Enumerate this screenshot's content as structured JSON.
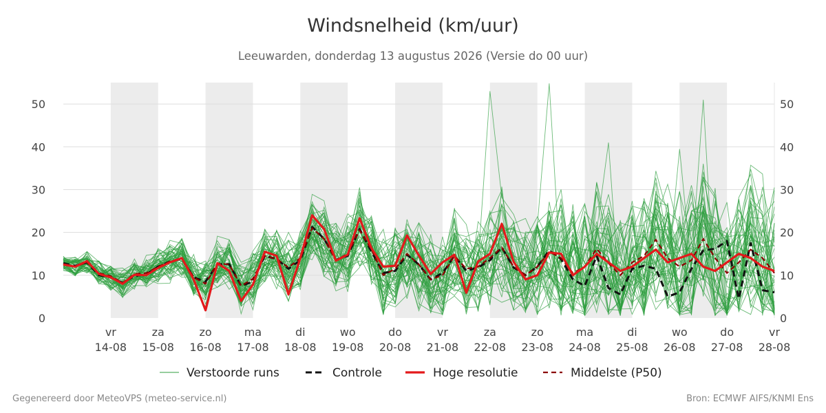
{
  "title": "Windsnelheid (km/uur)",
  "subtitle": "Leeuwarden, donderdag 13 augustus 2026 (Versie do 00 uur)",
  "footer": {
    "left": "Gegenereerd door MeteoVPS (meteo-service.nl)",
    "right": "Bron: ECMWF AIFS/KNMI Ens"
  },
  "colors": {
    "perturbed": "#2e9e3e",
    "control": "#111111",
    "hires": "#e3191b",
    "median": "#8b0000",
    "weekend_band": "#ececec",
    "grid": "#dddddd"
  },
  "legend": [
    {
      "label": "Verstoorde runs",
      "style": "thin-green"
    },
    {
      "label": "Controle",
      "style": "black-dashed"
    },
    {
      "label": "Hoge resolutie",
      "style": "red-solid"
    },
    {
      "label": "Middelste (P50)",
      "style": "darkred-dashed"
    }
  ],
  "chart_data": {
    "type": "line",
    "x_unit": "days after 13-08",
    "xlim": [
      0,
      15
    ],
    "ylim": [
      0,
      55
    ],
    "yticks": [
      0,
      10,
      20,
      30,
      40,
      50
    ],
    "grid": true,
    "legend_position": "bottom",
    "x_tick_labels": [
      {
        "day": "vr",
        "date": "14-08",
        "x": 1
      },
      {
        "day": "za",
        "date": "15-08",
        "x": 2
      },
      {
        "day": "zo",
        "date": "16-08",
        "x": 3
      },
      {
        "day": "ma",
        "date": "17-08",
        "x": 4
      },
      {
        "day": "di",
        "date": "18-08",
        "x": 5
      },
      {
        "day": "wo",
        "date": "19-08",
        "x": 6
      },
      {
        "day": "do",
        "date": "20-08",
        "x": 7
      },
      {
        "day": "vr",
        "date": "21-08",
        "x": 8
      },
      {
        "day": "za",
        "date": "22-08",
        "x": 9
      },
      {
        "day": "zo",
        "date": "23-08",
        "x": 10
      },
      {
        "day": "ma",
        "date": "24-08",
        "x": 11
      },
      {
        "day": "di",
        "date": "25-08",
        "x": 12
      },
      {
        "day": "wo",
        "date": "26-08",
        "x": 13
      },
      {
        "day": "do",
        "date": "27-08",
        "x": 14
      },
      {
        "day": "vr",
        "date": "28-08",
        "x": 15
      }
    ],
    "shaded_days": [
      [
        1,
        2
      ],
      [
        3,
        4
      ],
      [
        5,
        6
      ],
      [
        7,
        8
      ],
      [
        9,
        10
      ],
      [
        11,
        12
      ],
      [
        13,
        14
      ]
    ],
    "x": [
      0.0,
      0.25,
      0.5,
      0.75,
      1.0,
      1.25,
      1.5,
      1.75,
      2.0,
      2.25,
      2.5,
      2.75,
      3.0,
      3.25,
      3.5,
      3.75,
      4.0,
      4.25,
      4.5,
      4.75,
      5.0,
      5.25,
      5.5,
      5.75,
      6.0,
      6.25,
      6.5,
      6.75,
      7.0,
      7.25,
      7.5,
      7.75,
      8.0,
      8.25,
      8.5,
      8.75,
      9.0,
      9.25,
      9.5,
      9.75,
      10.0,
      10.25,
      10.5,
      10.75,
      11.0,
      11.25,
      11.5,
      11.75,
      12.0,
      12.25,
      12.5,
      12.75,
      13.0,
      13.25,
      13.5,
      13.75,
      14.0,
      14.25,
      14.5,
      14.75,
      15.0
    ],
    "series": [
      {
        "name": "Hoge resolutie",
        "values": [
          12.5,
          12.0,
          13.3,
          10.3,
          9.5,
          8.0,
          10.1,
          10.0,
          11.7,
          13.0,
          14.0,
          9.0,
          1.8,
          12.8,
          11.0,
          4.0,
          7.8,
          15.5,
          14.5,
          5.5,
          14.0,
          24.0,
          20.8,
          13.4,
          14.8,
          23.3,
          16.3,
          12.0,
          12.2,
          19.3,
          14.6,
          10.3,
          13.0,
          14.8,
          5.9,
          13.2,
          15.0,
          22.0,
          13.1,
          9.0,
          10.0,
          15.3,
          15.0,
          10.0,
          12.0,
          15.0,
          13.0,
          11.0,
          12.0,
          14.0,
          16.0,
          13.0,
          14.0,
          15.0,
          12.0,
          11.0,
          13.0,
          15.0,
          14.0,
          12.0,
          11.0
        ]
      },
      {
        "name": "Controle",
        "values": [
          12.8,
          12.2,
          13.0,
          10.0,
          9.5,
          8.2,
          9.8,
          10.2,
          12.0,
          13.2,
          13.8,
          9.5,
          8.5,
          12.5,
          12.6,
          7.5,
          8.5,
          14.5,
          13.8,
          11.5,
          13.5,
          21.3,
          18.5,
          13.6,
          14.5,
          20.8,
          15.5,
          10.5,
          11.0,
          14.8,
          12.5,
          9.0,
          10.5,
          14.5,
          11.0,
          11.8,
          13.5,
          16.5,
          11.8,
          10.0,
          12.0,
          15.8,
          13.8,
          9.0,
          7.5,
          14.5,
          7.0,
          5.5,
          11.5,
          12.2,
          11.5,
          5.0,
          6.0,
          11.5,
          15.8,
          16.2,
          18.0,
          4.5,
          17.5,
          6.5,
          6.0
        ]
      },
      {
        "name": "Middelste (P50)",
        "values": [
          12.6,
          12.0,
          13.0,
          10.5,
          9.8,
          8.2,
          10.3,
          10.5,
          12.0,
          13.2,
          14.0,
          9.5,
          8.0,
          12.8,
          12.5,
          7.5,
          9.2,
          14.5,
          13.8,
          11.8,
          14.0,
          21.0,
          18.5,
          13.5,
          15.0,
          20.5,
          16.0,
          10.0,
          11.5,
          15.0,
          12.5,
          9.0,
          10.0,
          14.5,
          11.5,
          12.0,
          14.0,
          16.5,
          12.0,
          10.0,
          12.0,
          15.5,
          14.0,
          10.5,
          12.0,
          16.2,
          12.8,
          10.0,
          13.0,
          14.5,
          18.3,
          14.0,
          12.0,
          13.5,
          18.5,
          14.0,
          10.5,
          13.0,
          16.0,
          14.0,
          10.5
        ]
      }
    ],
    "perturbed_runs": {
      "name": "Verstoorde runs",
      "count": 50,
      "notable_peaks": [
        {
          "x": 9.0,
          "value": 53.0
        },
        {
          "x": 10.25,
          "value": 54.8
        },
        {
          "x": 13.5,
          "value": 51.0
        },
        {
          "x": 14.5,
          "value": 35.7
        },
        {
          "x": 11.5,
          "value": 41.0
        },
        {
          "x": 13.0,
          "value": 39.5
        }
      ]
    }
  }
}
